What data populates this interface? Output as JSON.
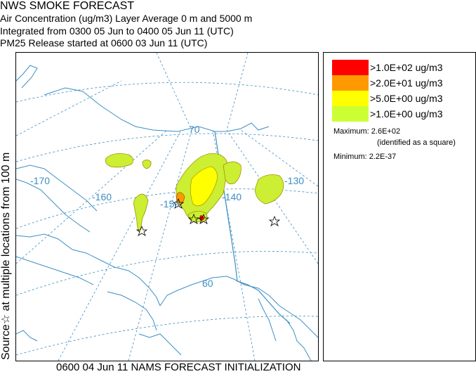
{
  "header": {
    "title": "NWS SMOKE FORECAST",
    "line2": "Air Concentration (ug/m3) Layer Average    0 m and  5000 m",
    "line3": "Integrated from 0300 05 Jun to 0400 05 Jun 11 (UTC)",
    "line4": "PM25 Release started at 0600 03 Jun 11 (UTC)"
  },
  "side_label": "Source☆ at multiple locations   from  100 m",
  "footer": "0600 04 Jun 11 NAMS FORECAST INITIALIZATION",
  "map": {
    "longitude_labels": [
      "-170",
      "-160",
      "-150",
      "-140",
      "-130"
    ],
    "latitude_labels": [
      "70",
      "60"
    ],
    "colors": {
      "coast": "#3b8fc4",
      "grid": "#3b8fc4",
      "plume_low": "#ccee33",
      "plume_mid": "#ffff00",
      "plume_high": "#ff9900",
      "plume_max": "#ff0000"
    }
  },
  "legend": {
    "items": [
      {
        "label": ">1.0E+02 ug/m3",
        "color": "#ff0000"
      },
      {
        "label": ">2.0E+01 ug/m3",
        "color": "#ff9900"
      },
      {
        "label": ">5.0E+00 ug/m3",
        "color": "#ffff00"
      },
      {
        "label": ">1.0E+00 ug/m3",
        "color": "#ccff33"
      }
    ],
    "maximum": "Maximum: 2.6E+02",
    "maximum_note": "(identified as a square)",
    "minimum": "Minimum: 2.2E-37"
  }
}
